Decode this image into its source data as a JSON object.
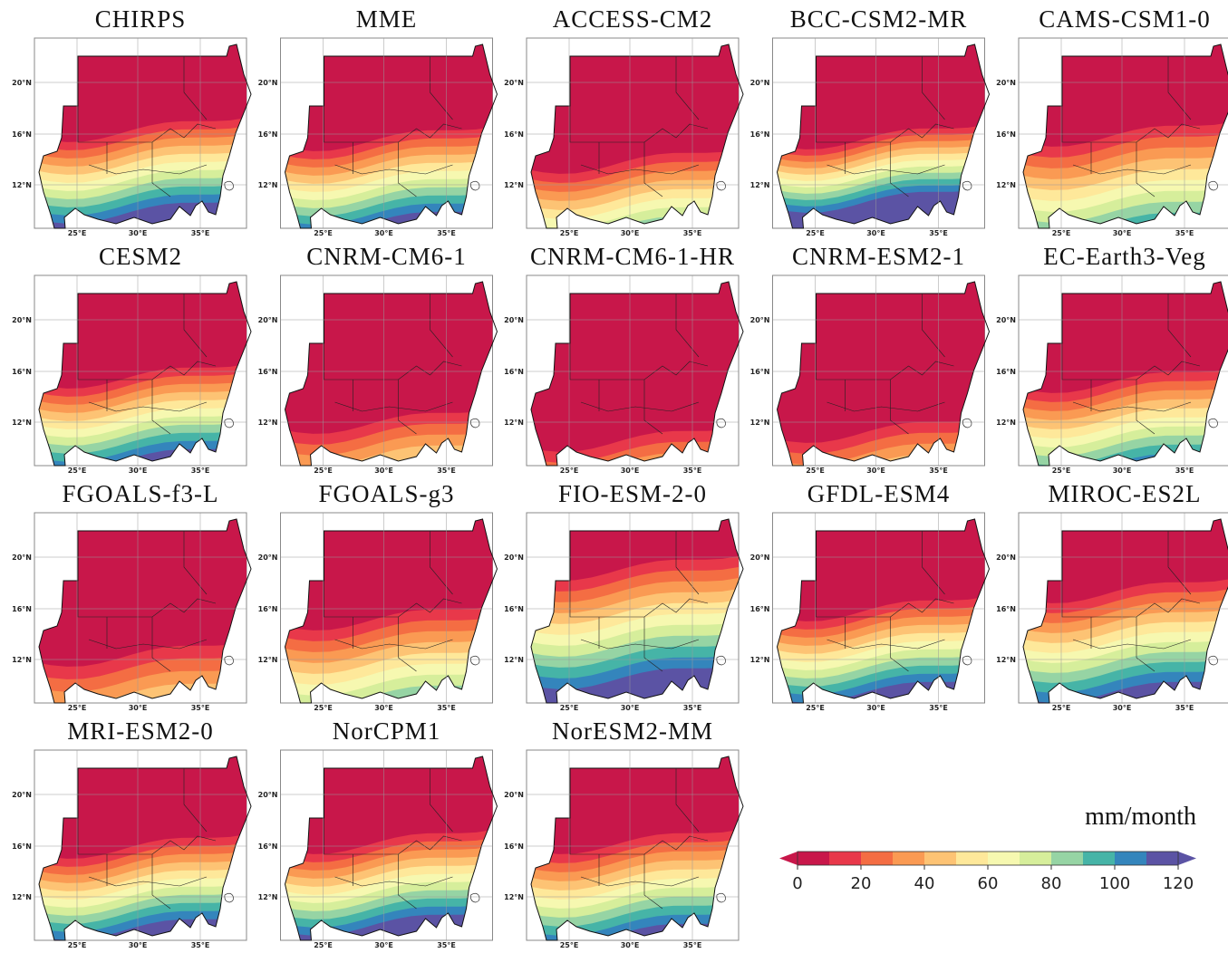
{
  "panels": [
    {
      "title": "CHIRPS"
    },
    {
      "title": "MME"
    },
    {
      "title": "ACCESS-CM2"
    },
    {
      "title": "BCC-CSM2-MR"
    },
    {
      "title": "CAMS-CSM1-0"
    },
    {
      "title": "CESM2"
    },
    {
      "title": "CNRM-CM6-1"
    },
    {
      "title": "CNRM-CM6-1-HR"
    },
    {
      "title": "CNRM-ESM2-1"
    },
    {
      "title": "EC-Earth3-Veg"
    },
    {
      "title": "FGOALS-f3-L"
    },
    {
      "title": "FGOALS-g3"
    },
    {
      "title": "FIO-ESM-2-0"
    },
    {
      "title": "GFDL-ESM4"
    },
    {
      "title": "MIROC-ES2L"
    },
    {
      "title": "MRI-ESM2-0"
    },
    {
      "title": "NorCPM1"
    },
    {
      "title": "NorESM2-MM"
    }
  ],
  "axes": {
    "lat_labels": [
      "20°N",
      "16°N",
      "12°N"
    ],
    "lon_labels": [
      "25°E",
      "30°E",
      "35°E"
    ]
  },
  "colorbar": {
    "unit": "mm/month",
    "lim": [
      0,
      120
    ],
    "ticks": [
      0,
      20,
      40,
      60,
      80,
      100,
      120
    ],
    "colors": [
      "#c8174a",
      "#e8384a",
      "#f46d43",
      "#fa9a53",
      "#fdc374",
      "#fee89a",
      "#f6f8b0",
      "#d6ee9b",
      "#96d4a4",
      "#46b4a7",
      "#3485bc",
      "#5b53a4"
    ]
  }
}
